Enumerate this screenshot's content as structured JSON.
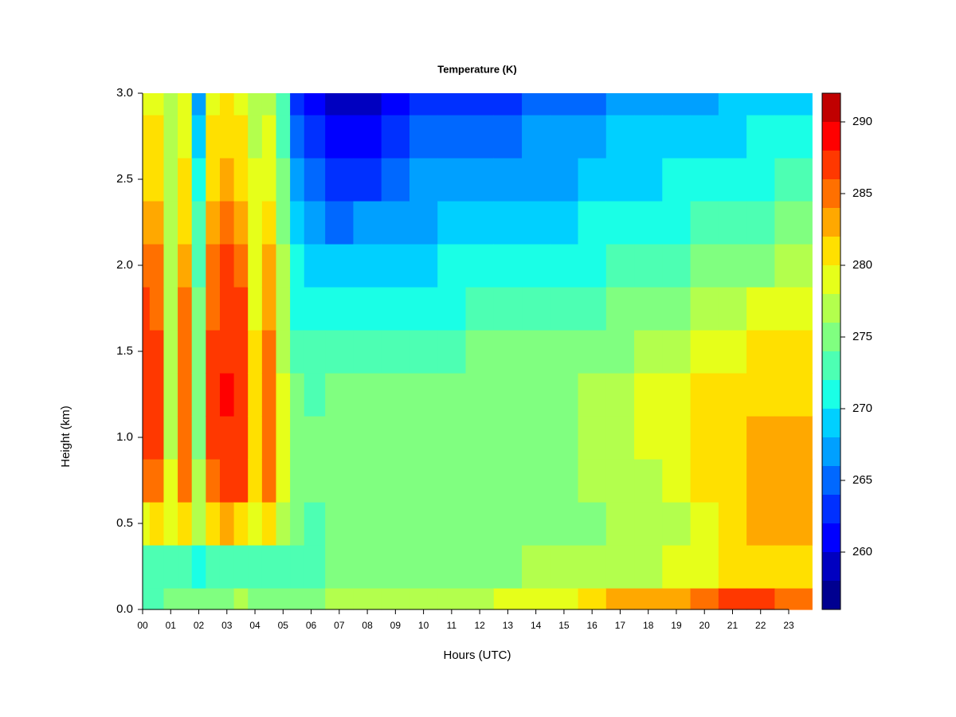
{
  "chart_data": {
    "type": "heatmap",
    "title": "Temperature (K)",
    "xlabel": "Hours (UTC)",
    "ylabel": "Height (km)",
    "x": [
      0,
      0.5,
      1,
      1.5,
      2,
      2.5,
      3,
      3.5,
      4,
      4.5,
      5,
      5.5,
      6,
      7,
      8,
      9,
      10,
      11,
      12,
      13,
      14,
      15,
      16,
      17,
      18,
      19,
      20,
      21,
      22,
      23
    ],
    "y": [
      0,
      0.25,
      0.5,
      0.75,
      1,
      1.25,
      1.5,
      1.75,
      2,
      2.25,
      2.5,
      2.75,
      3
    ],
    "z": [
      [
        273,
        272,
        279,
        284,
        286,
        287,
        286.5,
        286,
        285,
        283,
        281,
        280,
        279
      ],
      [
        273,
        272,
        280,
        285,
        286,
        286,
        286,
        285,
        284,
        283,
        281,
        280,
        279
      ],
      [
        274,
        272,
        278,
        278,
        277,
        277,
        277,
        277,
        276,
        276,
        276,
        276,
        276
      ],
      [
        274,
        272,
        280,
        284,
        285,
        285,
        285,
        284,
        283,
        281,
        280,
        279,
        278
      ],
      [
        274,
        271,
        276,
        276,
        275,
        275,
        274,
        274,
        273,
        272,
        270,
        268,
        266
      ],
      [
        274,
        272,
        281,
        285,
        286,
        286,
        286,
        285,
        284,
        283,
        281,
        280,
        279
      ],
      [
        275,
        272,
        282,
        286,
        287,
        288,
        287,
        287,
        286,
        284,
        282,
        281,
        280
      ],
      [
        276,
        272,
        281,
        286,
        287,
        287,
        287,
        286,
        285,
        283,
        281,
        280,
        279
      ],
      [
        274,
        272,
        278,
        280,
        280,
        280,
        280,
        279,
        279,
        278,
        278,
        277,
        277
      ],
      [
        274,
        272,
        280,
        284,
        285,
        284,
        284,
        283,
        282,
        280,
        279,
        278,
        277
      ],
      [
        274,
        273,
        276,
        278,
        278,
        278,
        277,
        277,
        276,
        275,
        274,
        273,
        272
      ],
      [
        274,
        273,
        274,
        275,
        275,
        274,
        273,
        271,
        270,
        268,
        266,
        264,
        262
      ],
      [
        275,
        273,
        273,
        274,
        274,
        273,
        272,
        270,
        268,
        266,
        264,
        262,
        260
      ],
      [
        276,
        274,
        274,
        275,
        275,
        274,
        272,
        270,
        268,
        265,
        262,
        260,
        259
      ],
      [
        277,
        274,
        275,
        275,
        275,
        275,
        272,
        270,
        268,
        266,
        263,
        261,
        259
      ],
      [
        277,
        275,
        275,
        275,
        275,
        275,
        273,
        271,
        269,
        267,
        265,
        263,
        261
      ],
      [
        277,
        275,
        275,
        275,
        275,
        275,
        273,
        271,
        269,
        267,
        266,
        264,
        262
      ],
      [
        277,
        275,
        275,
        275,
        275,
        275,
        273,
        271,
        270,
        268,
        266,
        264,
        262
      ],
      [
        277,
        275,
        275,
        275,
        275,
        275,
        274,
        272,
        270,
        268,
        266,
        265,
        263
      ],
      [
        278,
        275,
        275,
        275,
        275,
        275,
        274,
        272,
        270,
        268,
        267,
        265,
        263
      ],
      [
        279,
        276,
        275,
        275,
        275,
        275,
        274,
        272,
        271,
        269,
        267,
        266,
        264
      ],
      [
        279,
        276,
        275,
        275,
        275,
        275,
        274,
        272,
        271,
        269,
        267,
        266,
        264
      ],
      [
        281,
        276,
        275,
        276,
        276,
        276,
        275,
        273,
        271,
        270,
        268,
        267,
        265
      ],
      [
        282,
        276,
        276,
        276,
        277,
        277,
        275,
        274,
        272,
        271,
        269,
        268,
        266
      ],
      [
        283,
        277,
        276,
        277,
        278,
        278,
        276,
        274,
        273,
        271,
        269,
        268,
        266
      ],
      [
        283,
        278,
        277,
        278,
        279,
        279,
        277,
        275,
        273,
        271,
        270,
        268,
        267
      ],
      [
        285,
        279,
        279,
        280,
        281,
        281,
        278,
        276,
        274,
        272,
        270,
        269,
        267
      ],
      [
        286,
        280,
        280,
        281,
        281,
        281,
        279,
        277,
        275,
        273,
        271,
        269,
        268
      ],
      [
        286,
        281,
        282,
        283,
        282,
        281,
        280,
        278,
        275,
        273,
        271,
        270,
        268
      ],
      [
        285,
        281,
        283,
        283,
        282,
        281,
        280,
        278,
        276,
        274,
        272,
        270,
        269
      ]
    ],
    "levels": [
      256,
      258,
      260,
      262,
      264,
      266,
      268,
      270,
      272,
      274,
      276,
      278,
      280,
      282,
      284,
      286,
      288,
      290,
      292
    ],
    "colors": [
      "#000090",
      "#0000c0",
      "#0000ff",
      "#0030ff",
      "#0068ff",
      "#00a0ff",
      "#00d0ff",
      "#1affe6",
      "#4dffb3",
      "#80ff80",
      "#b3ff4d",
      "#e6ff1a",
      "#ffe000",
      "#ffa800",
      "#ff7000",
      "#ff3800",
      "#ff0000",
      "#c00000"
    ],
    "xlim": [
      0,
      23.83
    ],
    "ylim": [
      0,
      3
    ],
    "xticks": [
      {
        "value": 0,
        "label": "00"
      },
      {
        "value": 1,
        "label": "01"
      },
      {
        "value": 2,
        "label": "02"
      },
      {
        "value": 3,
        "label": "03"
      },
      {
        "value": 4,
        "label": "04"
      },
      {
        "value": 5,
        "label": "05"
      },
      {
        "value": 6,
        "label": "06"
      },
      {
        "value": 7,
        "label": "07"
      },
      {
        "value": 8,
        "label": "08"
      },
      {
        "value": 9,
        "label": "09"
      },
      10,
      11,
      12,
      13,
      14,
      15,
      16,
      17,
      18,
      19,
      20,
      21,
      22,
      23
    ],
    "yticks": [
      {
        "value": 0,
        "label": "0.0"
      },
      0.5,
      {
        "value": 1,
        "label": "1.0"
      },
      1.5,
      {
        "value": 2,
        "label": "2.0"
      },
      2.5,
      {
        "value": 3,
        "label": "3.0"
      }
    ],
    "cbar_ticks": [
      260,
      265,
      270,
      275,
      280,
      285,
      290
    ]
  }
}
